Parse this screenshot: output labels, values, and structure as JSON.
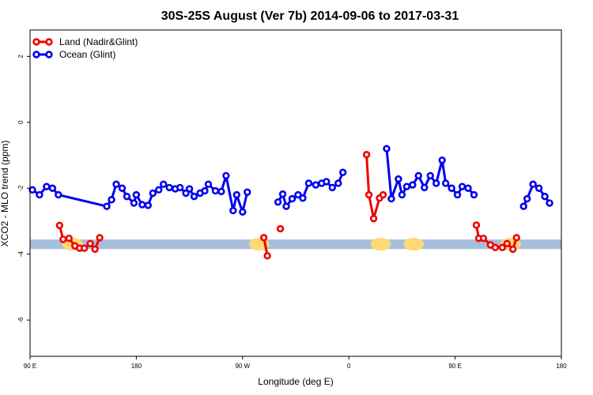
{
  "chart_data": {
    "type": "line",
    "title": "30S-25S August (Ver 7b)   2014-09-06 to 2017-03-31",
    "xlabel": "Longitude (deg E)",
    "ylabel": "XCO2 - MLO trend (ppm)",
    "xlim": [
      90,
      540
    ],
    "ylim": [
      -7.1,
      2.8
    ],
    "x_ticks": [
      {
        "value": 90,
        "label": "90 E"
      },
      {
        "value": 180,
        "label": "180"
      },
      {
        "value": 270,
        "label": "90 W"
      },
      {
        "value": 360,
        "label": "0"
      },
      {
        "value": 450,
        "label": "90 E"
      },
      {
        "value": 540,
        "label": "180"
      }
    ],
    "y_ticks": [
      {
        "value": 2,
        "label": "2"
      },
      {
        "value": 0,
        "label": "0"
      },
      {
        "value": -2,
        "label": "-2"
      },
      {
        "value": -4,
        "label": "-4"
      },
      {
        "value": -6,
        "label": "-6"
      }
    ],
    "grid": false,
    "legend_position": "top-left",
    "land_band": {
      "y": -3.7,
      "color": "#a6bddb"
    },
    "land_blobs": [
      {
        "x": 126,
        "color": "#ffd973"
      },
      {
        "x": 284,
        "color": "#ffd973"
      },
      {
        "x": 387,
        "color": "#ffd973"
      },
      {
        "x": 415,
        "color": "#ffd973"
      },
      {
        "x": 497,
        "color": "#ffd973"
      }
    ],
    "series": [
      {
        "name": "Land (Nadir&Glint)",
        "color": "#ee0000",
        "segments": [
          [
            [
              115,
              -3.13
            ],
            [
              118,
              -3.55
            ],
            [
              123,
              -3.52
            ],
            [
              128,
              -3.75
            ],
            [
              132,
              -3.82
            ],
            [
              136,
              -3.82
            ],
            [
              141,
              -3.68
            ],
            [
              145,
              -3.85
            ],
            [
              149,
              -3.5
            ]
          ],
          [
            [
              288,
              -3.5
            ],
            [
              291,
              -4.05
            ]
          ],
          [
            [
              302,
              -3.23
            ]
          ],
          [
            [
              375,
              -0.98
            ],
            [
              377,
              -2.2
            ],
            [
              381,
              -2.92
            ],
            [
              386,
              -2.3
            ],
            [
              389,
              -2.2
            ]
          ],
          [
            [
              468,
              -3.12
            ],
            [
              470,
              -3.52
            ],
            [
              474,
              -3.52
            ],
            [
              480,
              -3.72
            ],
            [
              484,
              -3.8
            ],
            [
              490,
              -3.8
            ],
            [
              494,
              -3.68
            ],
            [
              499,
              -3.85
            ],
            [
              502,
              -3.5
            ]
          ]
        ]
      },
      {
        "name": "Ocean (Glint)",
        "color": "#0000ee",
        "segments": [
          [
            [
              92,
              -2.05
            ],
            [
              98,
              -2.2
            ],
            [
              104,
              -1.95
            ],
            [
              109,
              -2.0
            ],
            [
              114,
              -2.2
            ],
            [
              155,
              -2.55
            ],
            [
              159,
              -2.35
            ],
            [
              163,
              -1.88
            ],
            [
              168,
              -2.0
            ],
            [
              172,
              -2.25
            ],
            [
              178,
              -2.45
            ],
            [
              180,
              -2.2
            ],
            [
              185,
              -2.5
            ],
            [
              190,
              -2.52
            ],
            [
              194,
              -2.15
            ],
            [
              199,
              -2.05
            ],
            [
              203,
              -1.88
            ],
            [
              208,
              -1.98
            ],
            [
              213,
              -2.02
            ],
            [
              217,
              -1.98
            ],
            [
              222,
              -2.15
            ],
            [
              225,
              -2.02
            ],
            [
              229,
              -2.25
            ],
            [
              234,
              -2.15
            ],
            [
              238,
              -2.08
            ],
            [
              241,
              -1.88
            ],
            [
              247,
              -2.08
            ],
            [
              252,
              -2.1
            ],
            [
              256,
              -1.62
            ],
            [
              262,
              -2.68
            ],
            [
              265,
              -2.2
            ],
            [
              270,
              -2.72
            ],
            [
              274,
              -2.12
            ]
          ],
          [
            [
              300,
              -2.42
            ],
            [
              304,
              -2.18
            ],
            [
              307,
              -2.55
            ],
            [
              312,
              -2.32
            ],
            [
              317,
              -2.2
            ],
            [
              321,
              -2.3
            ],
            [
              326,
              -1.85
            ],
            [
              332,
              -1.9
            ],
            [
              337,
              -1.85
            ],
            [
              341,
              -1.8
            ],
            [
              346,
              -1.98
            ],
            [
              351,
              -1.85
            ],
            [
              355,
              -1.52
            ]
          ],
          [
            [
              392,
              -0.8
            ],
            [
              396,
              -2.32
            ],
            [
              402,
              -1.72
            ],
            [
              405,
              -2.2
            ],
            [
              409,
              -1.95
            ],
            [
              414,
              -1.9
            ],
            [
              419,
              -1.62
            ],
            [
              424,
              -1.98
            ],
            [
              429,
              -1.62
            ],
            [
              434,
              -1.85
            ],
            [
              439,
              -1.15
            ],
            [
              442,
              -1.85
            ],
            [
              447,
              -2.0
            ],
            [
              452,
              -2.2
            ],
            [
              456,
              -1.95
            ],
            [
              461,
              -2.0
            ],
            [
              466,
              -2.2
            ]
          ],
          [
            [
              508,
              -2.55
            ],
            [
              511,
              -2.32
            ],
            [
              516,
              -1.88
            ],
            [
              521,
              -2.0
            ],
            [
              526,
              -2.25
            ],
            [
              530,
              -2.45
            ]
          ]
        ]
      }
    ]
  }
}
